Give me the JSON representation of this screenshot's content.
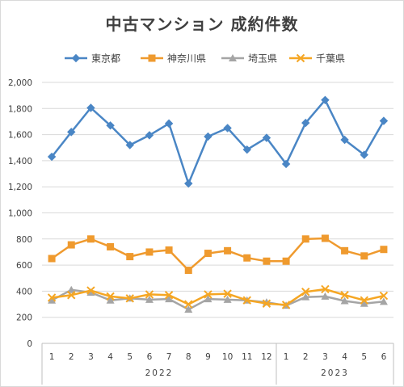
{
  "chart_data": {
    "type": "line",
    "title": "中古マンション 成約件数",
    "categories": [
      "1",
      "2",
      "3",
      "4",
      "5",
      "6",
      "7",
      "8",
      "9",
      "10",
      "11",
      "12",
      "1",
      "2",
      "3",
      "4",
      "5",
      "6"
    ],
    "year_groups": [
      {
        "label": "2022",
        "start": 0,
        "end": 11
      },
      {
        "label": "2023",
        "start": 12,
        "end": 17
      }
    ],
    "ylim": [
      0,
      2000
    ],
    "yticks": [
      0,
      200,
      400,
      600,
      800,
      1000,
      1200,
      1400,
      1600,
      1800,
      2000
    ],
    "ytick_labels": [
      "0",
      "200",
      "400",
      "600",
      "800",
      "1,000",
      "1,200",
      "1,400",
      "1,600",
      "1,800",
      "2,000"
    ],
    "grid": "horizontal",
    "legend_position": "top",
    "series": [
      {
        "name": "東京都",
        "color": "#4a86c5",
        "marker": "diamond",
        "values": [
          1430,
          1620,
          1805,
          1670,
          1520,
          1595,
          1685,
          1225,
          1585,
          1650,
          1485,
          1575,
          1375,
          1690,
          1865,
          1560,
          1445,
          1705
        ]
      },
      {
        "name": "神奈川県",
        "color": "#ef9a2e",
        "marker": "square",
        "values": [
          650,
          755,
          800,
          740,
          665,
          700,
          715,
          560,
          690,
          710,
          655,
          630,
          630,
          800,
          805,
          710,
          670,
          720
        ]
      },
      {
        "name": "埼玉県",
        "color": "#a5a5a5",
        "marker": "triangle",
        "values": [
          330,
          410,
          390,
          330,
          345,
          335,
          340,
          260,
          340,
          335,
          330,
          315,
          290,
          355,
          360,
          325,
          305,
          320
        ]
      },
      {
        "name": "千葉県",
        "color": "#f5a623",
        "marker": "x",
        "values": [
          350,
          370,
          405,
          360,
          345,
          375,
          370,
          300,
          375,
          380,
          330,
          305,
          295,
          395,
          415,
          370,
          330,
          365
        ]
      }
    ]
  }
}
